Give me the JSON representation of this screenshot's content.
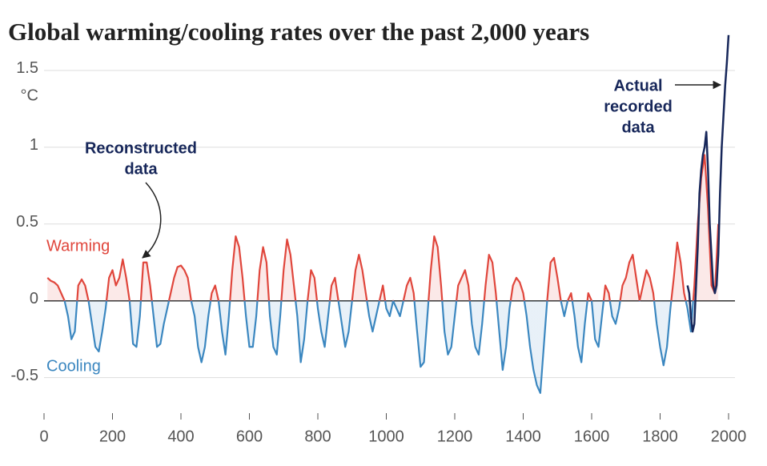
{
  "chart_data": {
    "type": "line",
    "title": "Global warming/cooling rates over the past 2,000 years",
    "y_unit": "°C",
    "xlim": [
      0,
      2000
    ],
    "xticks": [
      0,
      200,
      400,
      600,
      800,
      1000,
      1200,
      1400,
      1600,
      1800,
      2000
    ],
    "ylim": [
      -0.7,
      1.75
    ],
    "yticks": [
      -0.5,
      0,
      0.5,
      1,
      1.5
    ],
    "grid": true,
    "warming_label": {
      "text": "Warming",
      "color": "#e0463c"
    },
    "cooling_label": {
      "text": "Cooling",
      "color": "#3b87c0"
    },
    "series": [
      {
        "name": "Reconstructed data",
        "x": [
          10,
          20,
          30,
          40,
          50,
          60,
          70,
          80,
          90,
          100,
          110,
          120,
          130,
          140,
          150,
          160,
          170,
          180,
          190,
          200,
          210,
          220,
          230,
          240,
          250,
          260,
          270,
          280,
          290,
          300,
          310,
          320,
          330,
          340,
          350,
          360,
          370,
          380,
          390,
          400,
          410,
          420,
          430,
          440,
          450,
          460,
          470,
          480,
          490,
          500,
          510,
          520,
          530,
          540,
          550,
          560,
          570,
          580,
          590,
          600,
          610,
          620,
          630,
          640,
          650,
          660,
          670,
          680,
          690,
          700,
          710,
          720,
          730,
          740,
          750,
          760,
          770,
          780,
          790,
          800,
          810,
          820,
          830,
          840,
          850,
          860,
          870,
          880,
          890,
          900,
          910,
          920,
          930,
          940,
          950,
          960,
          970,
          980,
          990,
          1000,
          1010,
          1020,
          1030,
          1040,
          1050,
          1060,
          1070,
          1080,
          1090,
          1100,
          1110,
          1120,
          1130,
          1140,
          1150,
          1160,
          1170,
          1180,
          1190,
          1200,
          1210,
          1220,
          1230,
          1240,
          1250,
          1260,
          1270,
          1280,
          1290,
          1300,
          1310,
          1320,
          1330,
          1340,
          1350,
          1360,
          1370,
          1380,
          1390,
          1400,
          1410,
          1420,
          1430,
          1440,
          1450,
          1460,
          1470,
          1480,
          1490,
          1500,
          1510,
          1520,
          1530,
          1540,
          1550,
          1560,
          1570,
          1580,
          1590,
          1600,
          1610,
          1620,
          1630,
          1640,
          1650,
          1660,
          1670,
          1680,
          1690,
          1700,
          1710,
          1720,
          1730,
          1740,
          1750,
          1760,
          1770,
          1780,
          1790,
          1800,
          1810,
          1820,
          1830,
          1840,
          1850,
          1860,
          1870,
          1880,
          1890,
          1900,
          1910,
          1920,
          1930,
          1940,
          1950,
          1960,
          1970
        ],
        "values": [
          0.15,
          0.13,
          0.12,
          0.1,
          0.05,
          0.0,
          -0.1,
          -0.25,
          -0.2,
          0.1,
          0.14,
          0.1,
          0.0,
          -0.15,
          -0.3,
          -0.33,
          -0.2,
          -0.05,
          0.15,
          0.2,
          0.1,
          0.15,
          0.27,
          0.15,
          0.0,
          -0.28,
          -0.3,
          -0.1,
          0.25,
          0.25,
          0.1,
          -0.1,
          -0.3,
          -0.28,
          -0.15,
          -0.05,
          0.05,
          0.15,
          0.22,
          0.23,
          0.2,
          0.15,
          0.0,
          -0.1,
          -0.3,
          -0.4,
          -0.3,
          -0.1,
          0.05,
          0.1,
          0.0,
          -0.2,
          -0.35,
          -0.1,
          0.2,
          0.42,
          0.35,
          0.15,
          -0.1,
          -0.3,
          -0.3,
          -0.1,
          0.2,
          0.35,
          0.25,
          -0.1,
          -0.3,
          -0.35,
          -0.1,
          0.2,
          0.4,
          0.3,
          0.1,
          -0.1,
          -0.4,
          -0.25,
          0.0,
          0.2,
          0.15,
          -0.05,
          -0.2,
          -0.3,
          -0.1,
          0.1,
          0.15,
          0.0,
          -0.15,
          -0.3,
          -0.2,
          0.0,
          0.2,
          0.3,
          0.2,
          0.05,
          -0.1,
          -0.2,
          -0.1,
          0.0,
          0.1,
          -0.05,
          -0.1,
          0.0,
          -0.05,
          -0.1,
          0.0,
          0.1,
          0.15,
          0.05,
          -0.2,
          -0.43,
          -0.4,
          -0.1,
          0.2,
          0.42,
          0.35,
          0.1,
          -0.2,
          -0.35,
          -0.3,
          -0.1,
          0.1,
          0.15,
          0.2,
          0.1,
          -0.15,
          -0.3,
          -0.35,
          -0.15,
          0.1,
          0.3,
          0.25,
          0.05,
          -0.2,
          -0.45,
          -0.3,
          -0.05,
          0.1,
          0.15,
          0.12,
          0.05,
          -0.1,
          -0.3,
          -0.45,
          -0.55,
          -0.6,
          -0.3,
          0.0,
          0.25,
          0.28,
          0.15,
          0.0,
          -0.1,
          0.0,
          0.05,
          -0.1,
          -0.3,
          -0.4,
          -0.15,
          0.05,
          0.0,
          -0.25,
          -0.3,
          -0.1,
          0.1,
          0.05,
          -0.1,
          -0.15,
          -0.05,
          0.1,
          0.15,
          0.25,
          0.3,
          0.15,
          0.0,
          0.1,
          0.2,
          0.15,
          0.05,
          -0.15,
          -0.3,
          -0.42,
          -0.3,
          -0.05,
          0.15,
          0.38,
          0.25,
          0.05,
          -0.05,
          -0.2,
          0.1,
          0.5,
          0.8,
          0.95,
          0.6,
          0.1,
          0.05,
          0.5
        ]
      },
      {
        "name": "Actual recorded data",
        "color": "#17275a",
        "x": [
          1880,
          1885,
          1890,
          1895,
          1900,
          1905,
          1910,
          1915,
          1920,
          1925,
          1930,
          1935,
          1940,
          1945,
          1950,
          1955,
          1960,
          1965,
          1970,
          1975,
          1980,
          1985,
          1990,
          1995,
          2000
        ],
        "values": [
          0.1,
          0.05,
          -0.1,
          -0.2,
          -0.15,
          0.1,
          0.35,
          0.7,
          0.85,
          0.95,
          1.0,
          1.1,
          0.85,
          0.5,
          0.3,
          0.1,
          0.05,
          0.1,
          0.3,
          0.7,
          1.0,
          1.2,
          1.4,
          1.55,
          1.73
        ]
      }
    ],
    "annotations": [
      {
        "lines": [
          "Reconstructed",
          "data"
        ]
      },
      {
        "lines": [
          "Actual",
          "recorded",
          "data"
        ]
      }
    ]
  }
}
